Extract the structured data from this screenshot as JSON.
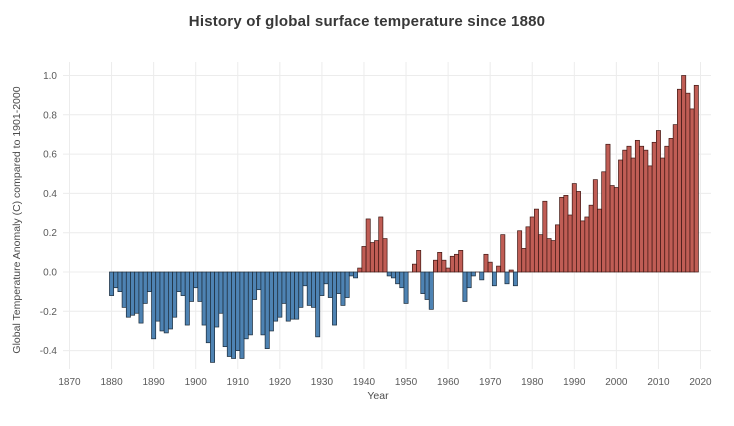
{
  "chart_data": {
    "type": "bar",
    "title": "History of global surface temperature since 1880",
    "xlabel": "Year",
    "ylabel": "Global Temperature Anomaly (C) compared to 1901-2000",
    "x_ticks": [
      1870,
      1880,
      1890,
      1900,
      1910,
      1920,
      1930,
      1940,
      1950,
      1960,
      1970,
      1980,
      1990,
      2000,
      2010,
      2020
    ],
    "y_ticks": [
      1.0,
      0.8,
      0.6,
      0.4,
      0.2,
      0.0,
      -0.2,
      -0.4
    ],
    "xlim": [
      1869,
      2022
    ],
    "ylim": [
      -0.5,
      1.07
    ],
    "grid": true,
    "legend": false,
    "colors": {
      "positive_fill": "#c05d55",
      "positive_stroke": "#3f1713",
      "negative_fill": "#4e83b3",
      "negative_stroke": "#1c2b39",
      "grid": "#ececec",
      "tick_text": "#5a5a5a",
      "title_text": "#383838"
    },
    "years": [
      1880,
      1881,
      1882,
      1883,
      1884,
      1885,
      1886,
      1887,
      1888,
      1889,
      1890,
      1891,
      1892,
      1893,
      1894,
      1895,
      1896,
      1897,
      1898,
      1899,
      1900,
      1901,
      1902,
      1903,
      1904,
      1905,
      1906,
      1907,
      1908,
      1909,
      1910,
      1911,
      1912,
      1913,
      1914,
      1915,
      1916,
      1917,
      1918,
      1919,
      1920,
      1921,
      1922,
      1923,
      1924,
      1925,
      1926,
      1927,
      1928,
      1929,
      1930,
      1931,
      1932,
      1933,
      1934,
      1935,
      1936,
      1937,
      1938,
      1939,
      1940,
      1941,
      1942,
      1943,
      1944,
      1945,
      1946,
      1947,
      1948,
      1949,
      1950,
      1951,
      1952,
      1953,
      1954,
      1955,
      1956,
      1957,
      1958,
      1959,
      1960,
      1961,
      1962,
      1963,
      1964,
      1965,
      1966,
      1967,
      1968,
      1969,
      1970,
      1971,
      1972,
      1973,
      1974,
      1975,
      1976,
      1977,
      1978,
      1979,
      1980,
      1981,
      1982,
      1983,
      1984,
      1985,
      1986,
      1987,
      1988,
      1989,
      1990,
      1991,
      1992,
      1993,
      1994,
      1995,
      1996,
      1997,
      1998,
      1999,
      2000,
      2001,
      2002,
      2003,
      2004,
      2005,
      2006,
      2007,
      2008,
      2009,
      2010,
      2011,
      2012,
      2013,
      2014,
      2015,
      2016,
      2017,
      2018,
      2019
    ],
    "values": [
      -0.12,
      -0.08,
      -0.1,
      -0.18,
      -0.23,
      -0.22,
      -0.21,
      -0.26,
      -0.16,
      -0.1,
      -0.34,
      -0.25,
      -0.3,
      -0.31,
      -0.29,
      -0.23,
      -0.1,
      -0.12,
      -0.27,
      -0.15,
      -0.08,
      -0.15,
      -0.27,
      -0.36,
      -0.46,
      -0.28,
      -0.21,
      -0.38,
      -0.43,
      -0.44,
      -0.4,
      -0.44,
      -0.34,
      -0.32,
      -0.14,
      -0.09,
      -0.32,
      -0.39,
      -0.3,
      -0.25,
      -0.23,
      -0.16,
      -0.25,
      -0.24,
      -0.24,
      -0.18,
      -0.07,
      -0.17,
      -0.18,
      -0.33,
      -0.12,
      -0.06,
      -0.13,
      -0.27,
      -0.11,
      -0.17,
      -0.13,
      -0.02,
      -0.03,
      0.02,
      0.13,
      0.27,
      0.15,
      0.16,
      0.28,
      0.17,
      -0.02,
      -0.03,
      -0.06,
      -0.08,
      -0.16,
      0.0,
      0.04,
      0.11,
      -0.11,
      -0.14,
      -0.19,
      0.06,
      0.1,
      0.06,
      0.02,
      0.08,
      0.09,
      0.11,
      -0.15,
      -0.08,
      -0.02,
      0.0,
      -0.04,
      0.09,
      0.05,
      -0.07,
      0.03,
      0.19,
      -0.06,
      0.01,
      -0.07,
      0.21,
      0.12,
      0.23,
      0.28,
      0.32,
      0.19,
      0.36,
      0.17,
      0.16,
      0.24,
      0.38,
      0.39,
      0.29,
      0.45,
      0.41,
      0.26,
      0.28,
      0.34,
      0.47,
      0.32,
      0.51,
      0.65,
      0.44,
      0.43,
      0.57,
      0.62,
      0.64,
      0.58,
      0.67,
      0.64,
      0.62,
      0.54,
      0.66,
      0.72,
      0.58,
      0.64,
      0.68,
      0.75,
      0.93,
      1.0,
      0.91,
      0.83,
      0.95
    ]
  }
}
